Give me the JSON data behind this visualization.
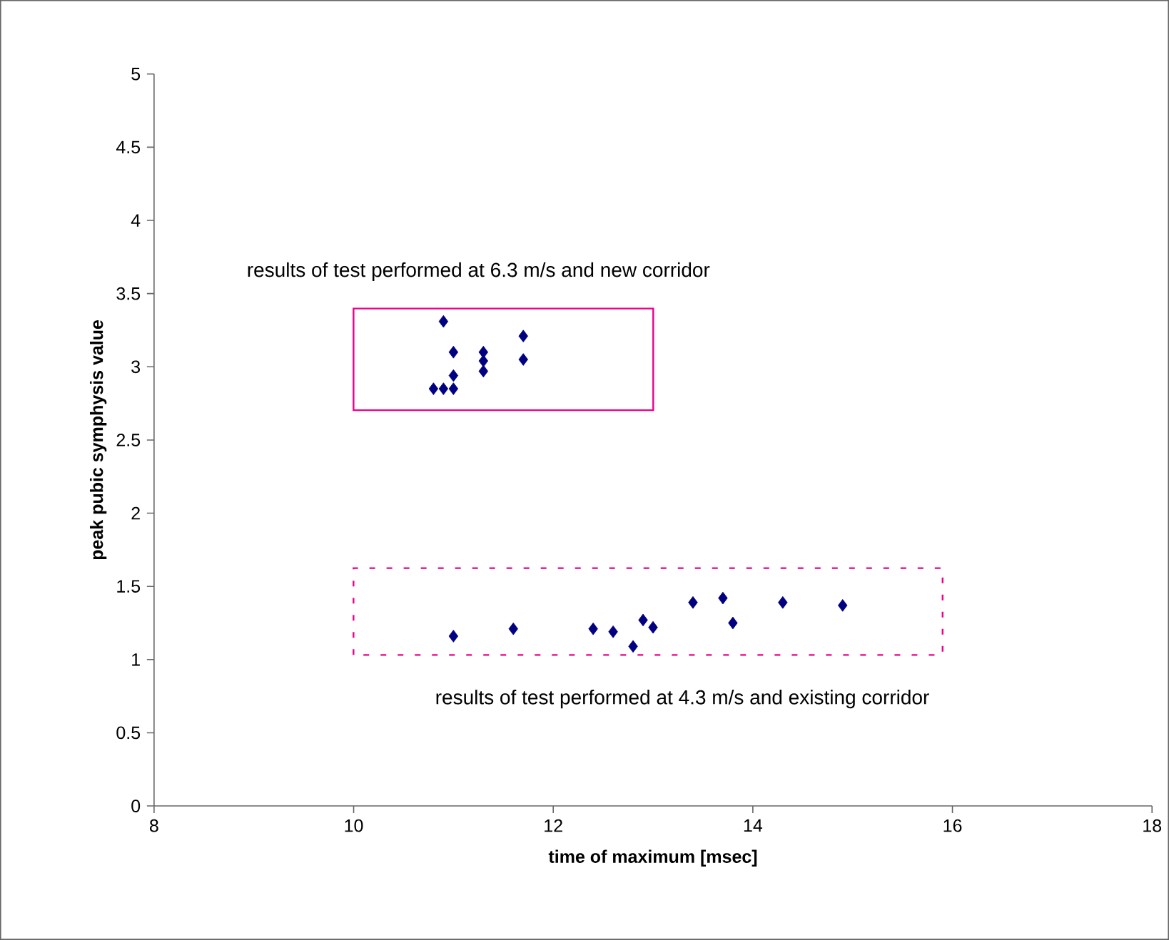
{
  "chart_data": {
    "type": "scatter",
    "xlabel": "time of maximum [msec]",
    "ylabel": "peak pubic symphysis value",
    "xlim": [
      8,
      18
    ],
    "xticks": [
      8,
      10,
      12,
      14,
      16,
      18
    ],
    "ylim": [
      0,
      5
    ],
    "yticks": [
      0,
      0.5,
      1,
      1.5,
      2,
      2.5,
      3,
      3.5,
      4,
      4.5,
      5
    ],
    "marker": "diamond",
    "annotations": [
      "results of test performed at 6.3 m/s and new corridor",
      "results of test performed at 4.3 m/s and existing corridor"
    ],
    "series": [
      {
        "color": "#000080",
        "x": [
          10.9,
          11.0,
          11.3,
          11.3,
          11.3,
          11.7,
          11.7,
          11.0,
          10.8,
          10.9,
          11.0
        ],
        "values": [
          3.31,
          3.1,
          3.1,
          3.04,
          2.97,
          3.21,
          3.05,
          2.94,
          2.85,
          2.85,
          2.85
        ]
      },
      {
        "color": "#000080",
        "x": [
          11.0,
          11.6,
          12.4,
          12.6,
          12.8,
          12.9,
          13.0,
          13.4,
          13.7,
          13.8,
          14.3,
          14.9
        ],
        "values": [
          1.16,
          1.21,
          1.21,
          1.19,
          1.09,
          1.27,
          1.22,
          1.39,
          1.42,
          1.25,
          1.39,
          1.37
        ]
      }
    ]
  }
}
